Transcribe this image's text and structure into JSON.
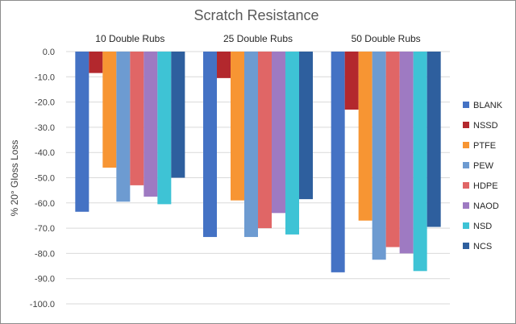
{
  "chart_data": {
    "type": "bar",
    "title": "Scratch Resistance",
    "ylabel": "% 20° Gloss Loss",
    "xlabel": "",
    "ylim": [
      -100,
      0
    ],
    "ytick_step": 10,
    "ytick_labels": [
      "0.0",
      "-10.0",
      "-20.0",
      "-30.0",
      "-40.0",
      "-50.0",
      "-60.0",
      "-70.0",
      "-80.0",
      "-90.0",
      "-100.0"
    ],
    "grid": true,
    "legend_position": "right",
    "categories": [
      "10 Double Rubs",
      "25 Double Rubs",
      "50 Double Rubs"
    ],
    "series": [
      {
        "name": "BLANK",
        "color": "#4472c4",
        "values": [
          -63.5,
          -73.5,
          -87.5
        ]
      },
      {
        "name": "NSSD",
        "color": "#b3282d",
        "values": [
          -8.5,
          -10.5,
          -23.0
        ]
      },
      {
        "name": "PTFE",
        "color": "#f79533",
        "values": [
          -46.0,
          -59.0,
          -67.0
        ]
      },
      {
        "name": "PEW",
        "color": "#6d9bd1",
        "values": [
          -59.5,
          -73.5,
          -82.5
        ]
      },
      {
        "name": "HDPE",
        "color": "#e06666",
        "values": [
          -53.0,
          -70.0,
          -77.5
        ]
      },
      {
        "name": "NAOD",
        "color": "#9e7ac2",
        "values": [
          -57.5,
          -64.0,
          -80.0
        ]
      },
      {
        "name": "NSD",
        "color": "#3ec3d5",
        "values": [
          -60.5,
          -72.5,
          -87.0
        ]
      },
      {
        "name": "NCS",
        "color": "#2e5f9e",
        "values": [
          -50.0,
          -58.5,
          -69.5
        ]
      }
    ]
  }
}
